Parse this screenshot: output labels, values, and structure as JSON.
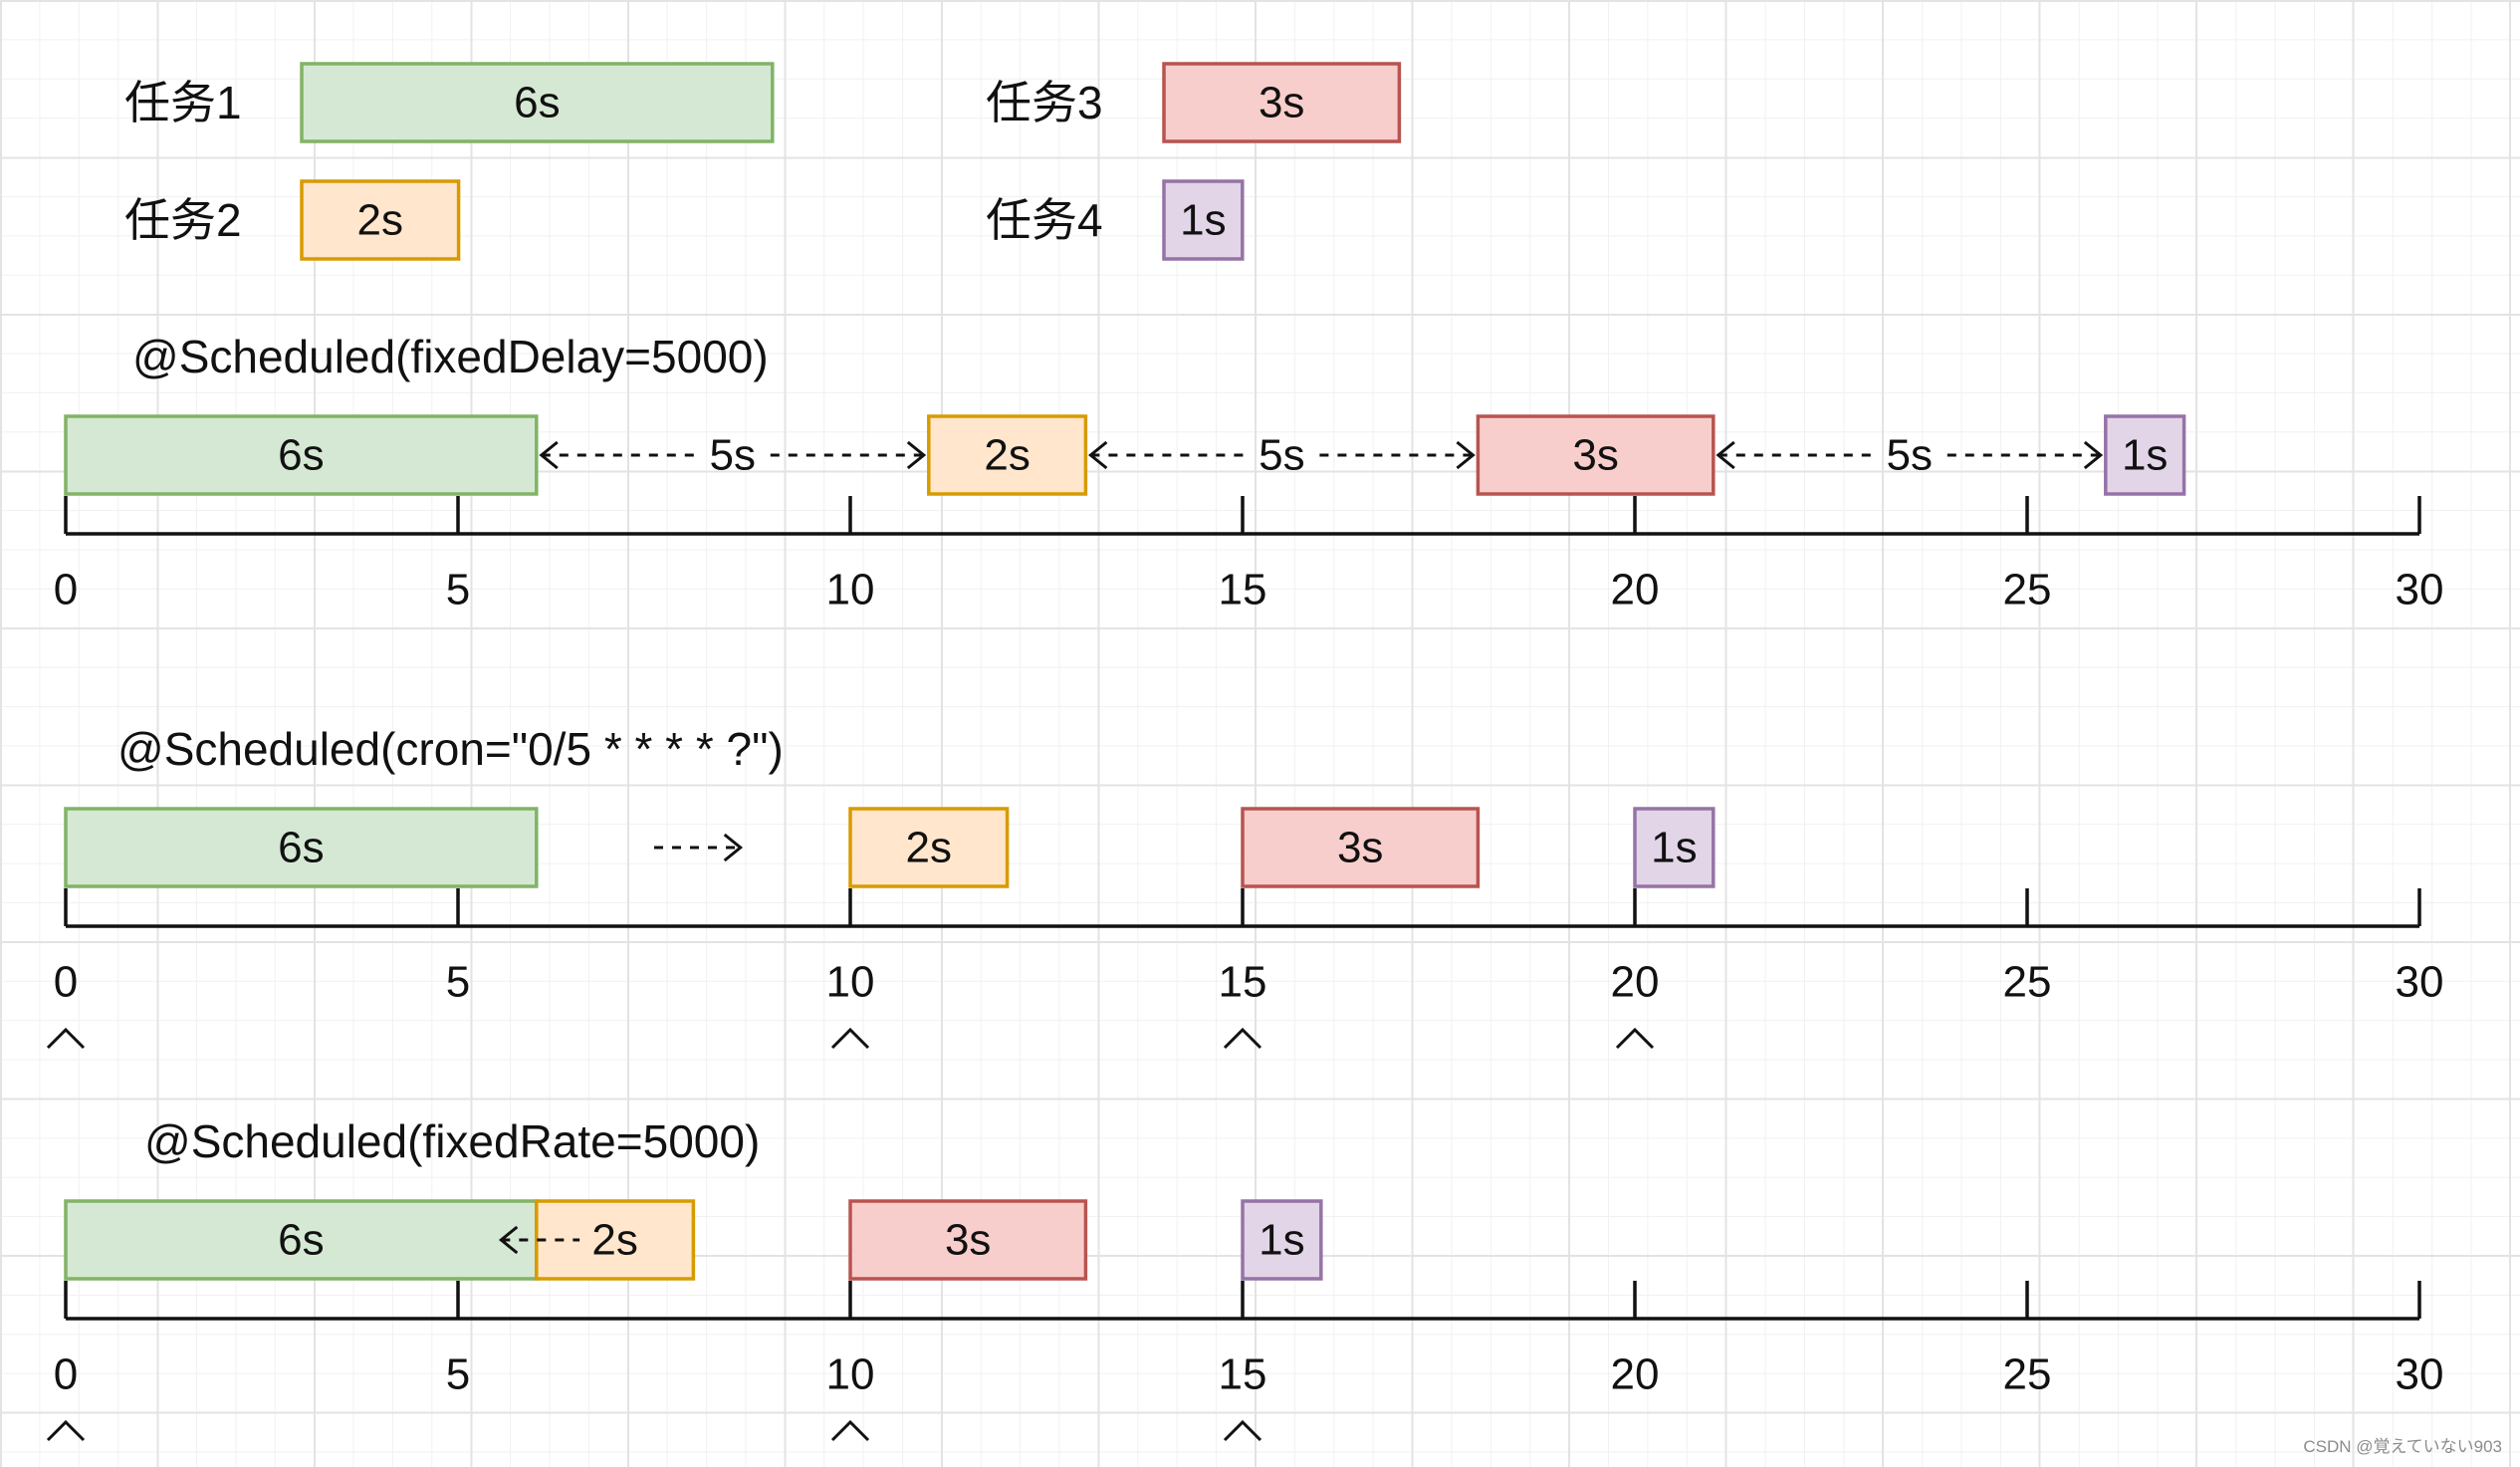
{
  "colors": {
    "task1": {
      "fill": "#d5e8d4",
      "stroke": "#82b366"
    },
    "task2": {
      "fill": "#ffe6cc",
      "stroke": "#d79b00"
    },
    "task3": {
      "fill": "#f8cecc",
      "stroke": "#b85450"
    },
    "task4": {
      "fill": "#e1d5e7",
      "stroke": "#9673a6"
    }
  },
  "legend": [
    {
      "task": "task1",
      "name": "任务1",
      "duration": 6,
      "label": "6s"
    },
    {
      "task": "task2",
      "name": "任务2",
      "duration": 2,
      "label": "2s"
    },
    {
      "task": "task3",
      "name": "任务3",
      "duration": 3,
      "label": "3s"
    },
    {
      "task": "task4",
      "name": "任务4",
      "duration": 1,
      "label": "1s"
    }
  ],
  "axis": {
    "min": 0,
    "max": 30,
    "ticks": [
      0,
      5,
      10,
      15,
      20,
      25,
      30
    ],
    "tick_labels": [
      "0",
      "5",
      "10",
      "15",
      "20",
      "25",
      "30"
    ]
  },
  "rows": [
    {
      "title": "@Scheduled(fixedDelay=5000)",
      "bars": [
        {
          "task": "task1",
          "start": 0,
          "end": 6,
          "label": "6s"
        },
        {
          "task": "task2",
          "start": 11,
          "end": 13,
          "label": "2s"
        },
        {
          "task": "task3",
          "start": 18,
          "end": 21,
          "label": "3s"
        },
        {
          "task": "task4",
          "start": 26,
          "end": 27,
          "label": "1s"
        }
      ],
      "gaps": [
        {
          "from": 6,
          "to": 11,
          "label": "5s"
        },
        {
          "from": 13,
          "to": 18,
          "label": "5s"
        },
        {
          "from": 21,
          "to": 26,
          "label": "5s"
        }
      ],
      "connectors": [],
      "triggers": []
    },
    {
      "title": "@Scheduled(cron=\"0/5 * * * * ?\")",
      "bars": [
        {
          "task": "task1",
          "start": 0,
          "end": 6,
          "label": "6s"
        },
        {
          "task": "task2",
          "start": 10,
          "end": 12,
          "label": "2s"
        },
        {
          "task": "task3",
          "start": 15,
          "end": 18,
          "label": "3s"
        },
        {
          "task": "task4",
          "start": 20,
          "end": 21,
          "label": "1s"
        }
      ],
      "gaps": [],
      "connectors": [
        {
          "from": 7.5,
          "to": 8.6,
          "label": "",
          "dir": "right"
        }
      ],
      "triggers": [
        0,
        10,
        15,
        20
      ]
    },
    {
      "title": "@Scheduled(fixedRate=5000)",
      "bars": [
        {
          "task": "task1",
          "start": 0,
          "end": 6,
          "label": "6s"
        },
        {
          "task": "task2",
          "start": 6,
          "end": 8,
          "label": "2s"
        },
        {
          "task": "task3",
          "start": 10,
          "end": 13,
          "label": "3s"
        },
        {
          "task": "task4",
          "start": 15,
          "end": 16,
          "label": "1s"
        }
      ],
      "gaps": [],
      "connectors": [
        {
          "from": 5.55,
          "to": 6.55,
          "label": "",
          "dir": "left"
        }
      ],
      "triggers": [
        0,
        10,
        15
      ]
    }
  ],
  "watermark": "CSDN @覚えていない903"
}
